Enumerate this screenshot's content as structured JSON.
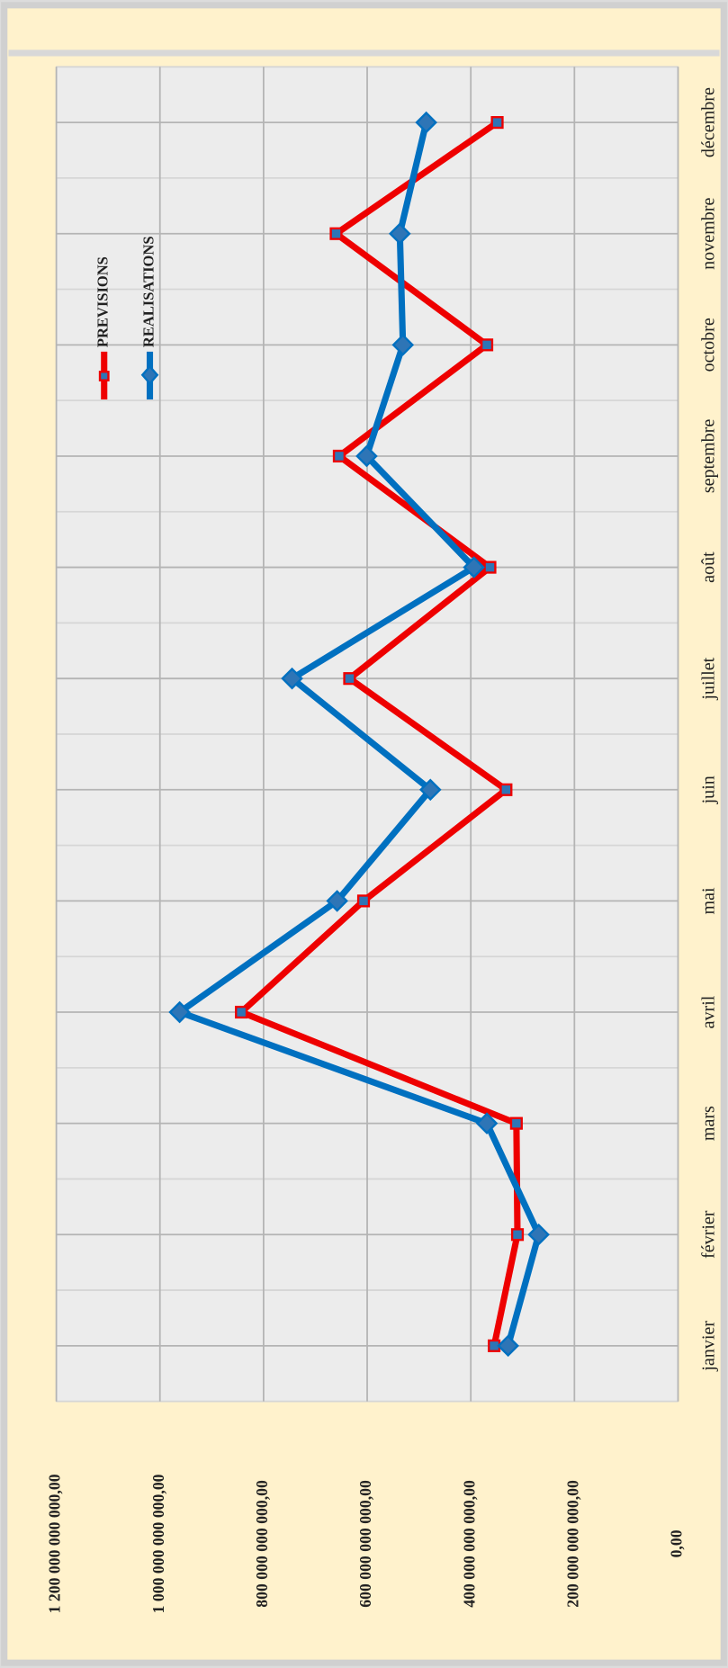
{
  "chart_data": {
    "type": "line",
    "categories": [
      "janvier",
      "février",
      "mars",
      "avril",
      "mai",
      "juin",
      "juillet",
      "août",
      "septembre",
      "octobre",
      "novembre",
      "décembre"
    ],
    "series": [
      {
        "name": "PREVISIONS",
        "color": "#ee0000",
        "marker": "square",
        "values": [
          355000000000,
          310000000000,
          312000000000,
          843000000000,
          607000000000,
          332000000000,
          634000000000,
          363000000000,
          654000000000,
          369000000000,
          660000000000,
          349000000000
        ]
      },
      {
        "name": "REALISATIONS",
        "color": "#0070c0",
        "marker": "diamond",
        "values": [
          328000000000,
          269000000000,
          369000000000,
          962000000000,
          658000000000,
          478000000000,
          745000000000,
          394000000000,
          601000000000,
          531000000000,
          537000000000,
          486000000000
        ]
      }
    ],
    "ylim": [
      0,
      1200000000000
    ],
    "yticks": [
      {
        "value": 0,
        "label": "0,00"
      },
      {
        "value": 200000000000,
        "label": "200 000 000 000,00"
      },
      {
        "value": 400000000000,
        "label": "400 000 000 000,00"
      },
      {
        "value": 600000000000,
        "label": "600 000 000 000,00"
      },
      {
        "value": 800000000000,
        "label": "800 000 000 000,00"
      },
      {
        "value": 1000000000000,
        "label": "1 000 000 000 000,00"
      },
      {
        "value": 1200000000000,
        "label": "1 200 000 000 000,00"
      }
    ],
    "grid": true,
    "legend": "top-left"
  }
}
